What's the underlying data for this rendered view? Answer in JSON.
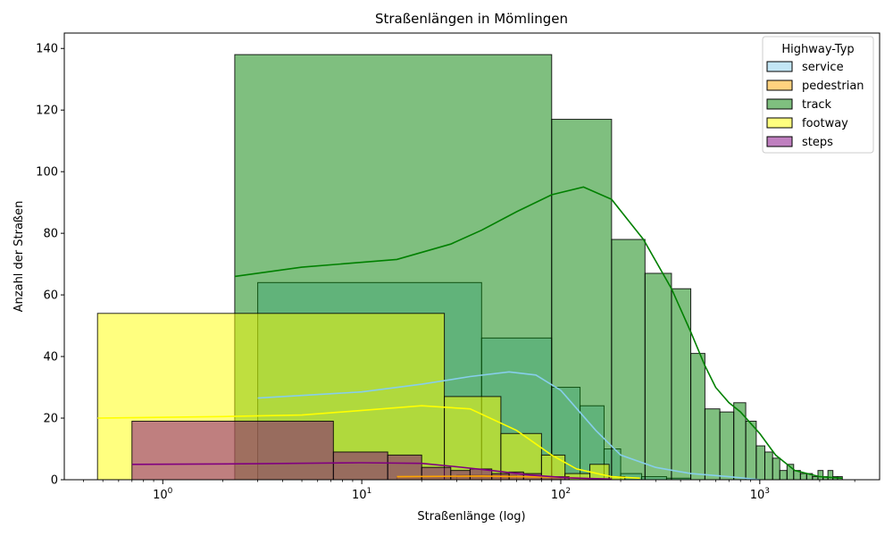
{
  "chart_data": {
    "type": "histogram",
    "title": "Straßenlängen in Mömlingen",
    "xlabel": "Straßenlänge (log)",
    "ylabel": "Anzahl der Straßen",
    "x_scale": "log",
    "xlim": [
      0.32,
      4000
    ],
    "ylim": [
      0,
      145
    ],
    "y_ticks": [
      0,
      20,
      40,
      60,
      80,
      100,
      120,
      140
    ],
    "x_tick_labels": [
      {
        "value": 1,
        "base": "10",
        "exp": "0"
      },
      {
        "value": 10,
        "base": "10",
        "exp": "1"
      },
      {
        "value": 100,
        "base": "10",
        "exp": "2"
      },
      {
        "value": 1000,
        "base": "10",
        "exp": "3"
      }
    ],
    "legend": {
      "title": "Highway-Typ",
      "placement": "top-right",
      "entries": [
        "service",
        "pedestrian",
        "track",
        "footway",
        "steps"
      ]
    },
    "grid": false,
    "series": [
      {
        "name": "service",
        "color": "#87ceeb",
        "line_color": "#87ceeb",
        "bins": [
          {
            "x0": 3.0,
            "x1": 40,
            "count": 64
          },
          {
            "x0": 40,
            "x1": 90,
            "count": 46
          },
          {
            "x0": 90,
            "x1": 125,
            "count": 30
          },
          {
            "x0": 125,
            "x1": 165,
            "count": 24
          },
          {
            "x0": 165,
            "x1": 200,
            "count": 10
          },
          {
            "x0": 200,
            "x1": 255,
            "count": 2
          },
          {
            "x0": 255,
            "x1": 340,
            "count": 1
          },
          {
            "x0": 340,
            "x1": 450,
            "count": 0.5
          }
        ],
        "kde": [
          [
            3,
            26.5
          ],
          [
            10,
            28.5
          ],
          [
            20,
            31
          ],
          [
            35,
            33.5
          ],
          [
            55,
            35
          ],
          [
            75,
            34
          ],
          [
            100,
            29
          ],
          [
            150,
            16
          ],
          [
            200,
            8
          ],
          [
            300,
            4
          ],
          [
            450,
            2
          ],
          [
            700,
            1
          ],
          [
            1000,
            0
          ]
        ]
      },
      {
        "name": "pedestrian",
        "color": "#ffa500",
        "line_color": "#ffa500",
        "bins": [
          {
            "x0": 15,
            "x1": 30,
            "count": 1
          },
          {
            "x0": 30,
            "x1": 60,
            "count": 1.5
          },
          {
            "x0": 60,
            "x1": 100,
            "count": 1
          }
        ],
        "kde": [
          [
            15,
            1
          ],
          [
            40,
            1.2
          ],
          [
            100,
            0.8
          ],
          [
            150,
            0.3
          ]
        ]
      },
      {
        "name": "track",
        "color": "#008000",
        "line_color": "#008000",
        "bins": [
          {
            "x0": 2.3,
            "x1": 90,
            "count": 138
          },
          {
            "x0": 90,
            "x1": 180,
            "count": 117
          },
          {
            "x0": 180,
            "x1": 265,
            "count": 78
          },
          {
            "x0": 265,
            "x1": 360,
            "count": 67
          },
          {
            "x0": 360,
            "x1": 450,
            "count": 62
          },
          {
            "x0": 450,
            "x1": 530,
            "count": 41
          },
          {
            "x0": 530,
            "x1": 630,
            "count": 23
          },
          {
            "x0": 630,
            "x1": 740,
            "count": 22
          },
          {
            "x0": 740,
            "x1": 850,
            "count": 25
          },
          {
            "x0": 850,
            "x1": 960,
            "count": 19
          },
          {
            "x0": 960,
            "x1": 1060,
            "count": 11
          },
          {
            "x0": 1060,
            "x1": 1160,
            "count": 9
          },
          {
            "x0": 1160,
            "x1": 1260,
            "count": 7
          },
          {
            "x0": 1260,
            "x1": 1370,
            "count": 3
          },
          {
            "x0": 1370,
            "x1": 1480,
            "count": 5
          },
          {
            "x0": 1480,
            "x1": 1600,
            "count": 3
          },
          {
            "x0": 1600,
            "x1": 1720,
            "count": 2
          },
          {
            "x0": 1720,
            "x1": 1840,
            "count": 2
          },
          {
            "x0": 1840,
            "x1": 1960,
            "count": 1
          },
          {
            "x0": 1960,
            "x1": 2080,
            "count": 3
          },
          {
            "x0": 2080,
            "x1": 2200,
            "count": 1
          },
          {
            "x0": 2200,
            "x1": 2330,
            "count": 3
          },
          {
            "x0": 2330,
            "x1": 2460,
            "count": 1
          },
          {
            "x0": 2460,
            "x1": 2600,
            "count": 1
          }
        ],
        "kde": [
          [
            2.3,
            66
          ],
          [
            5,
            69
          ],
          [
            15,
            71.5
          ],
          [
            28,
            76.5
          ],
          [
            40,
            81
          ],
          [
            60,
            87
          ],
          [
            90,
            92.5
          ],
          [
            130,
            95
          ],
          [
            180,
            91
          ],
          [
            260,
            78
          ],
          [
            360,
            62
          ],
          [
            450,
            48
          ],
          [
            530,
            37
          ],
          [
            600,
            30
          ],
          [
            700,
            25
          ],
          [
            800,
            22
          ],
          [
            1000,
            15
          ],
          [
            1200,
            8
          ],
          [
            1500,
            3
          ],
          [
            2000,
            1
          ],
          [
            2600,
            0.5
          ]
        ]
      },
      {
        "name": "footway",
        "color": "#ffff00",
        "line_color": "#ffff00",
        "bins": [
          {
            "x0": 0.47,
            "x1": 26,
            "count": 54
          },
          {
            "x0": 26,
            "x1": 50,
            "count": 27
          },
          {
            "x0": 50,
            "x1": 80,
            "count": 15
          },
          {
            "x0": 80,
            "x1": 105,
            "count": 8
          },
          {
            "x0": 105,
            "x1": 140,
            "count": 2
          },
          {
            "x0": 140,
            "x1": 175,
            "count": 5
          },
          {
            "x0": 175,
            "x1": 210,
            "count": 1
          }
        ],
        "kde": [
          [
            0.47,
            20
          ],
          [
            2,
            20.5
          ],
          [
            5,
            21
          ],
          [
            10,
            22.5
          ],
          [
            20,
            24
          ],
          [
            35,
            23
          ],
          [
            60,
            16
          ],
          [
            90,
            8
          ],
          [
            120,
            3.5
          ],
          [
            180,
            1
          ],
          [
            250,
            0.5
          ]
        ]
      },
      {
        "name": "steps",
        "color": "#800080",
        "line_color": "#800080",
        "bins": [
          {
            "x0": 0.7,
            "x1": 7.2,
            "count": 19
          },
          {
            "x0": 7.2,
            "x1": 13.5,
            "count": 9
          },
          {
            "x0": 13.5,
            "x1": 20,
            "count": 8
          },
          {
            "x0": 20,
            "x1": 28,
            "count": 4
          },
          {
            "x0": 28,
            "x1": 35,
            "count": 3
          },
          {
            "x0": 35,
            "x1": 45,
            "count": 3.5
          },
          {
            "x0": 45,
            "x1": 55,
            "count": 2
          },
          {
            "x0": 55,
            "x1": 65,
            "count": 2.5
          },
          {
            "x0": 65,
            "x1": 80,
            "count": 2
          },
          {
            "x0": 80,
            "x1": 110,
            "count": 1
          }
        ],
        "kde": [
          [
            0.7,
            5
          ],
          [
            3,
            5.2
          ],
          [
            10,
            5.5
          ],
          [
            20,
            5.3
          ],
          [
            30,
            4.2
          ],
          [
            45,
            3
          ],
          [
            70,
            1.5
          ],
          [
            110,
            0.6
          ],
          [
            180,
            0.2
          ]
        ]
      }
    ]
  }
}
